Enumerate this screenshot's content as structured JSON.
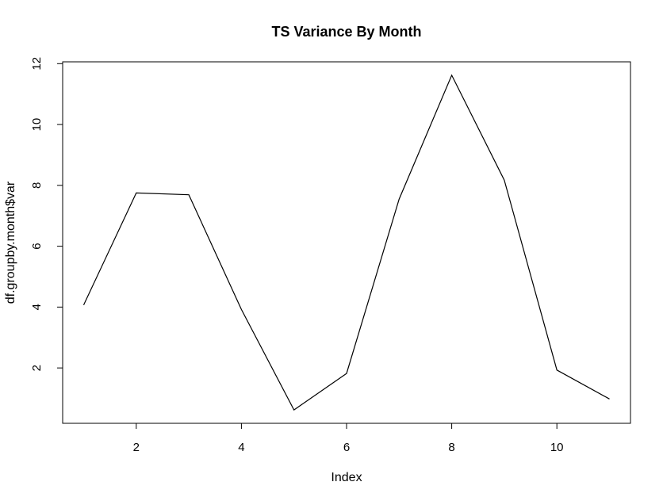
{
  "chart_data": {
    "type": "line",
    "title": "TS Variance By Month",
    "xlabel": "Index",
    "ylabel": "df.groupby.month$var",
    "x": [
      1,
      2,
      3,
      4,
      5,
      6,
      7,
      8,
      9,
      10,
      11
    ],
    "series": [
      {
        "values": [
          4.07,
          7.75,
          7.69,
          3.92,
          0.62,
          1.82,
          7.55,
          11.62,
          8.17,
          1.93,
          0.98
        ]
      }
    ],
    "xlim": [
      0.6,
      11.4
    ],
    "ylim": [
      0.18,
      12.06
    ],
    "xticks": [
      2,
      4,
      6,
      8,
      10
    ],
    "yticks": [
      2,
      4,
      6,
      8,
      10,
      12
    ],
    "grid": false,
    "colors": {
      "line": "#000000",
      "axis": "#000000",
      "background": "#ffffff"
    }
  }
}
